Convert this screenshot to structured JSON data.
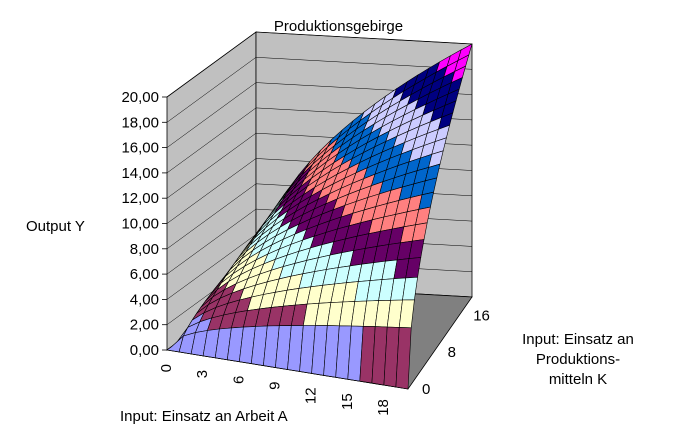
{
  "chart_data": {
    "type": "surface",
    "title": "Produktionsgebirge",
    "zlabel": "Output Y",
    "xlabel": "Input: Einsatz an Arbeit A",
    "ylabel_lines": [
      "Input: Einsatz an",
      "Produktions-",
      "mitteln K"
    ],
    "z_ticks": [
      "0,00",
      "2,00",
      "4,00",
      "6,00",
      "8,00",
      "10,00",
      "12,00",
      "14,00",
      "16,00",
      "18,00",
      "20,00"
    ],
    "x_ticks": [
      "0",
      "3",
      "6",
      "9",
      "12",
      "15",
      "18"
    ],
    "y_ticks": [
      "0",
      "8",
      "16"
    ],
    "zlim": [
      0,
      20
    ],
    "x_range": [
      0,
      20
    ],
    "y_range": [
      0,
      20
    ],
    "function": "Y = A^0.5 * K^0.5",
    "band_colors": [
      "#9999ff",
      "#993366",
      "#ffffcc",
      "#ccffff",
      "#660066",
      "#ff8080",
      "#0066cc",
      "#ccccff",
      "#000080",
      "#ff00ff"
    ],
    "wall_color": "#c0c0c0",
    "floor_color": "#808080",
    "mesh_color": "#000000"
  }
}
